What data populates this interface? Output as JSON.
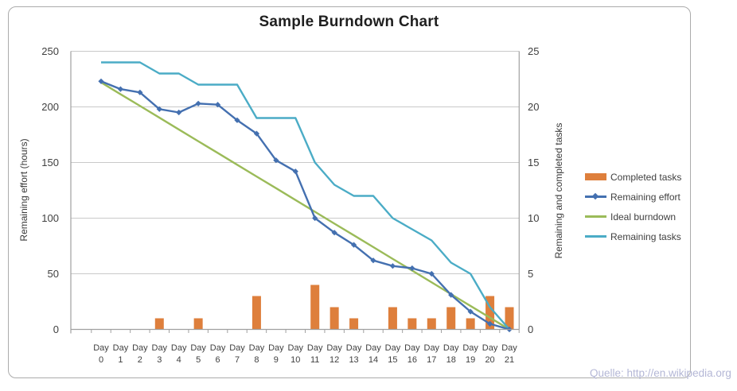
{
  "title": "Sample Burndown Chart",
  "watermark": "Quelle: http://en.wikipedia.org",
  "colors": {
    "completed_tasks": "#de7f3c",
    "remaining_effort": "#4470b0",
    "ideal_burndown": "#9bbb59",
    "remaining_tasks": "#4bacc6",
    "gridline": "#c9c9c9",
    "axis_line": "#a0a0a0",
    "tick_text": "#404040",
    "frame_border": "#ababab",
    "watermark_text": "#b4b7d6"
  },
  "axes": {
    "left": {
      "title": "Remaining effort (hours)",
      "ticks": [
        0,
        50,
        100,
        150,
        200,
        250
      ]
    },
    "right": {
      "title": "Remaining and completed tasks",
      "ticks": [
        0,
        5,
        10,
        15,
        20,
        25
      ]
    },
    "x": {
      "label_prefix": "Day",
      "day_numbers": [
        "0",
        "1",
        "2",
        "3",
        "4",
        "5",
        "6",
        "7",
        "8",
        "9",
        "10",
        "11",
        "12",
        "13",
        "14",
        "15",
        "16",
        "17",
        "18",
        "19",
        "20",
        "21"
      ]
    }
  },
  "legend": {
    "items": [
      {
        "label": "Completed tasks",
        "type": "bar",
        "color": "#de7f3c"
      },
      {
        "label": "Remaining effort",
        "type": "line-diamond",
        "color": "#4470b0"
      },
      {
        "label": "Ideal burndown",
        "type": "line",
        "color": "#9bbb59"
      },
      {
        "label": "Remaining tasks",
        "type": "line",
        "color": "#4bacc6"
      }
    ]
  },
  "chart_data": {
    "type": "combo",
    "title": "Sample Burndown Chart",
    "x": [
      0,
      1,
      2,
      3,
      4,
      5,
      6,
      7,
      8,
      9,
      10,
      11,
      12,
      13,
      14,
      15,
      16,
      17,
      18,
      19,
      20,
      21
    ],
    "left_axis": {
      "label": "Remaining effort (hours)",
      "range": [
        0,
        250
      ],
      "tick_step": 50
    },
    "right_axis": {
      "label": "Remaining and completed tasks",
      "range": [
        0,
        25
      ],
      "tick_step": 5
    },
    "grid": true,
    "legend_position": "right",
    "series": [
      {
        "name": "Completed tasks",
        "type": "bar",
        "axis": "right",
        "color": "#de7f3c",
        "values": [
          0,
          0,
          0,
          1,
          0,
          1,
          0,
          0,
          3,
          0,
          0,
          4,
          2,
          1,
          0,
          2,
          1,
          1,
          2,
          1,
          3,
          2
        ]
      },
      {
        "name": "Remaining effort",
        "type": "line",
        "marker": "diamond",
        "axis": "left",
        "color": "#4470b0",
        "values": [
          223,
          216,
          213,
          198,
          195,
          203,
          202,
          188,
          176,
          152,
          142,
          100,
          87,
          76,
          62,
          57,
          55,
          50,
          31,
          16,
          5,
          0
        ]
      },
      {
        "name": "Ideal burndown",
        "type": "line",
        "axis": "left",
        "color": "#9bbb59",
        "values": [
          222,
          211.4,
          200.9,
          190.3,
          179.7,
          169.1,
          158.6,
          148,
          137.4,
          126.9,
          116.3,
          105.7,
          95.1,
          84.6,
          74,
          63.4,
          52.9,
          42.3,
          31.7,
          21.1,
          10.6,
          0
        ]
      },
      {
        "name": "Remaining tasks",
        "type": "line",
        "axis": "right",
        "color": "#4bacc6",
        "values": [
          24,
          24,
          24,
          23,
          23,
          22,
          22,
          22,
          19,
          19,
          19,
          15,
          13,
          12,
          12,
          10,
          9,
          8,
          6,
          5,
          2,
          0
        ]
      }
    ]
  }
}
